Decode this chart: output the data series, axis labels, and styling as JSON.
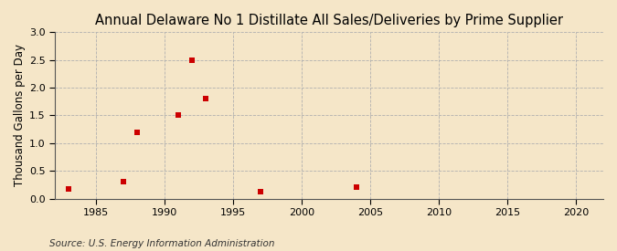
{
  "title": "Annual Delaware No 1 Distillate All Sales/Deliveries by Prime Supplier",
  "ylabel": "Thousand Gallons per Day",
  "source_text": "Source: U.S. Energy Information Administration",
  "background_color": "#f5e6c8",
  "plot_bg_color": "#f5e6c8",
  "marker_color": "#cc0000",
  "marker": "s",
  "marker_size": 16,
  "xlim": [
    1982,
    2022
  ],
  "ylim": [
    0.0,
    3.0
  ],
  "yticks": [
    0.0,
    0.5,
    1.0,
    1.5,
    2.0,
    2.5,
    3.0
  ],
  "xticks": [
    1985,
    1990,
    1995,
    2000,
    2005,
    2010,
    2015,
    2020
  ],
  "data_x": [
    1983,
    1987,
    1988,
    1991,
    1992,
    1993,
    1997,
    2004
  ],
  "data_y": [
    0.17,
    0.3,
    1.2,
    1.5,
    2.5,
    1.8,
    0.12,
    0.2
  ],
  "grid_color": "#b0b0b0",
  "grid_style": "--",
  "title_fontsize": 10.5,
  "axis_fontsize": 8.5,
  "tick_fontsize": 8,
  "source_fontsize": 7.5
}
